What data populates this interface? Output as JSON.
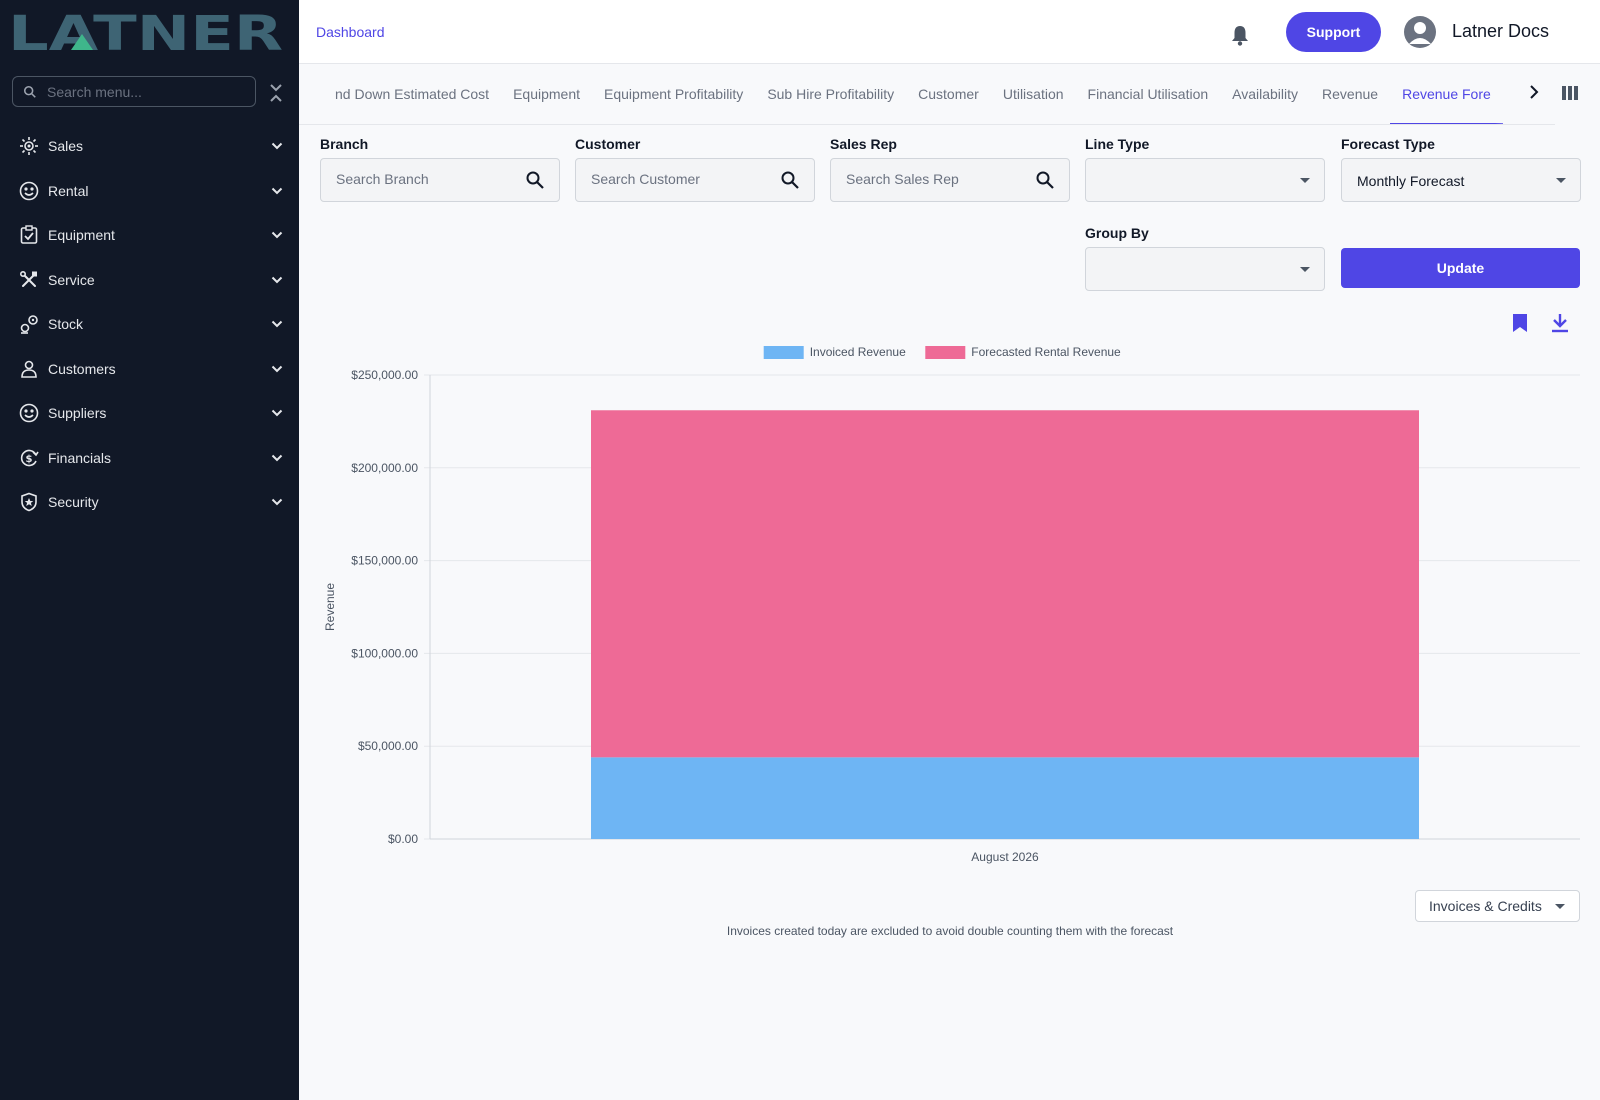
{
  "sidebar": {
    "logo_text": "LATNER",
    "search_placeholder": "Search menu...",
    "items": [
      {
        "label": "Sales",
        "icon": "sales-icon"
      },
      {
        "label": "Rental",
        "icon": "rental-icon"
      },
      {
        "label": "Equipment",
        "icon": "equipment-icon"
      },
      {
        "label": "Service",
        "icon": "tools-icon"
      },
      {
        "label": "Stock",
        "icon": "stock-icon"
      },
      {
        "label": "Customers",
        "icon": "person-icon"
      },
      {
        "label": "Suppliers",
        "icon": "suppliers-icon"
      },
      {
        "label": "Financials",
        "icon": "financials-icon"
      },
      {
        "label": "Security",
        "icon": "shield-icon"
      }
    ]
  },
  "header": {
    "breadcrumb": "Dashboard",
    "support_label": "Support",
    "user_name": "Latner Docs"
  },
  "tabs": [
    {
      "label": "nd Down Estimated Cost",
      "active": false
    },
    {
      "label": "Equipment",
      "active": false
    },
    {
      "label": "Equipment Profitability",
      "active": false
    },
    {
      "label": "Sub Hire Profitability",
      "active": false
    },
    {
      "label": "Customer",
      "active": false
    },
    {
      "label": "Utilisation",
      "active": false
    },
    {
      "label": "Financial Utilisation",
      "active": false
    },
    {
      "label": "Availability",
      "active": false
    },
    {
      "label": "Revenue",
      "active": false
    },
    {
      "label": "Revenue Fore",
      "active": true
    }
  ],
  "filters": {
    "branch": {
      "label": "Branch",
      "placeholder": "Search Branch"
    },
    "customer": {
      "label": "Customer",
      "placeholder": "Search Customer"
    },
    "sales_rep": {
      "label": "Sales Rep",
      "placeholder": "Search Sales Rep"
    },
    "line_type": {
      "label": "Line Type",
      "value": ""
    },
    "forecast_type": {
      "label": "Forecast Type",
      "value": "Monthly Forecast"
    },
    "group_by": {
      "label": "Group By",
      "value": ""
    },
    "update_label": "Update"
  },
  "chart_data": {
    "type": "bar",
    "stacked": true,
    "categories": [
      "August 2026"
    ],
    "series": [
      {
        "name": "Invoiced Revenue",
        "values": [
          44000
        ],
        "color": "#6eb5f4"
      },
      {
        "name": "Forecasted Rental Revenue",
        "values": [
          187000
        ],
        "color": "#ee6a96"
      }
    ],
    "ylabel": "Revenue",
    "xlabel": "",
    "ylim": [
      0,
      250000
    ],
    "yticks": [
      "$0.00",
      "$50,000.00",
      "$100,000.00",
      "$150,000.00",
      "$200,000.00",
      "$250,000.00"
    ],
    "ytick_values": [
      0,
      50000,
      100000,
      150000,
      200000,
      250000
    ],
    "legend_position": "top-center",
    "grid": true
  },
  "invoices_select": "Invoices & Credits",
  "footnote": "Invoices created today are excluded to avoid double counting them with the forecast",
  "colors": {
    "accent": "#4f46e5",
    "sidebar_bg": "#111827",
    "logo": "#3e6474",
    "logo_accent": "#3fb68b"
  }
}
